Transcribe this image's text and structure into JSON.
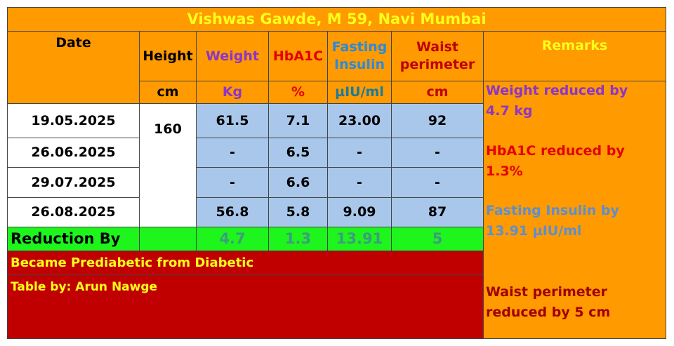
{
  "title": "Vishwas Gawde, M 59, Navi Mumbai",
  "headers": [
    "Date",
    "Height",
    "Weight",
    "HbA1C",
    "Fasting Insulin",
    "Waist perimeter"
  ],
  "units": [
    "cm",
    "Kg",
    "%",
    "µIU/ml",
    "cm"
  ],
  "height": "160",
  "rows": [
    [
      "19.05.2025",
      "61.5",
      "7.1",
      "23.00",
      "92"
    ],
    [
      "26.06.2025",
      "-",
      "6.5",
      "-",
      "-"
    ],
    [
      "29.07.2025",
      "-",
      "6.6",
      "-",
      "-"
    ],
    [
      "26.08.2025",
      "56.8",
      "5.8",
      "9.09",
      "87"
    ]
  ],
  "reduction": {
    "label": "Reduction By",
    "values": [
      "4.7",
      "1.3",
      "13.91",
      "5"
    ]
  },
  "note": "Became Prediabetic from Diabetic",
  "credit": "Table by: Arun Nawge",
  "remarks_header": "Remarks",
  "remarks": [
    [
      "Weight reduced by",
      "4.7 kg"
    ],
    [
      "HbA1C reduced by",
      "1.3%"
    ],
    [
      "Fasting Insulin by",
      "13.91 µIU/ml"
    ],
    [
      "Waist perimeter",
      "reduced by 5 cm"
    ]
  ]
}
